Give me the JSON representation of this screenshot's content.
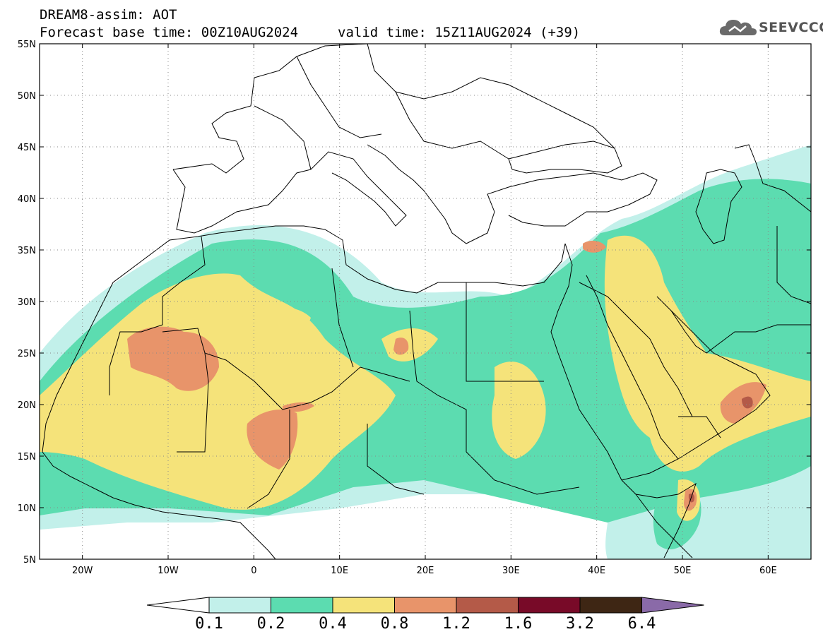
{
  "header": {
    "title": "DREAM8-assim: AOT",
    "base_time": "Forecast base time: 00Z10AUG2024",
    "valid_time": "valid time: 15Z11AUG2024 (+39)",
    "logo_text": "SEEVCCC"
  },
  "map": {
    "lon_range": [
      -25,
      65
    ],
    "lat_range": [
      5,
      55
    ],
    "lat_ticks": [
      {
        "value": 55,
        "label": "55N"
      },
      {
        "value": 50,
        "label": "50N"
      },
      {
        "value": 45,
        "label": "45N"
      },
      {
        "value": 40,
        "label": "40N"
      },
      {
        "value": 35,
        "label": "35N"
      },
      {
        "value": 30,
        "label": "30N"
      },
      {
        "value": 25,
        "label": "25N"
      },
      {
        "value": 20,
        "label": "20N"
      },
      {
        "value": 15,
        "label": "15N"
      },
      {
        "value": 10,
        "label": "10N"
      },
      {
        "value": 5,
        "label": "5N"
      }
    ],
    "lon_ticks": [
      {
        "value": -20,
        "label": "20W"
      },
      {
        "value": -10,
        "label": "10W"
      },
      {
        "value": 0,
        "label": "0"
      },
      {
        "value": 10,
        "label": "10E"
      },
      {
        "value": 20,
        "label": "20E"
      },
      {
        "value": 30,
        "label": "30E"
      },
      {
        "value": 40,
        "label": "40E"
      },
      {
        "value": 50,
        "label": "50E"
      },
      {
        "value": 60,
        "label": "60E"
      }
    ],
    "grid": "dotted"
  },
  "colorbar": {
    "low_color": "#ffffff",
    "high_color": "#8a6aa8",
    "colors": [
      "#c2f0ea",
      "#5cdcb0",
      "#f5e37a",
      "#e8946a",
      "#b45a48",
      "#780a28",
      "#3e2614"
    ],
    "labels": [
      "0.1",
      "0.2",
      "0.4",
      "0.8",
      "1.2",
      "1.6",
      "3.2",
      "6.4"
    ]
  }
}
